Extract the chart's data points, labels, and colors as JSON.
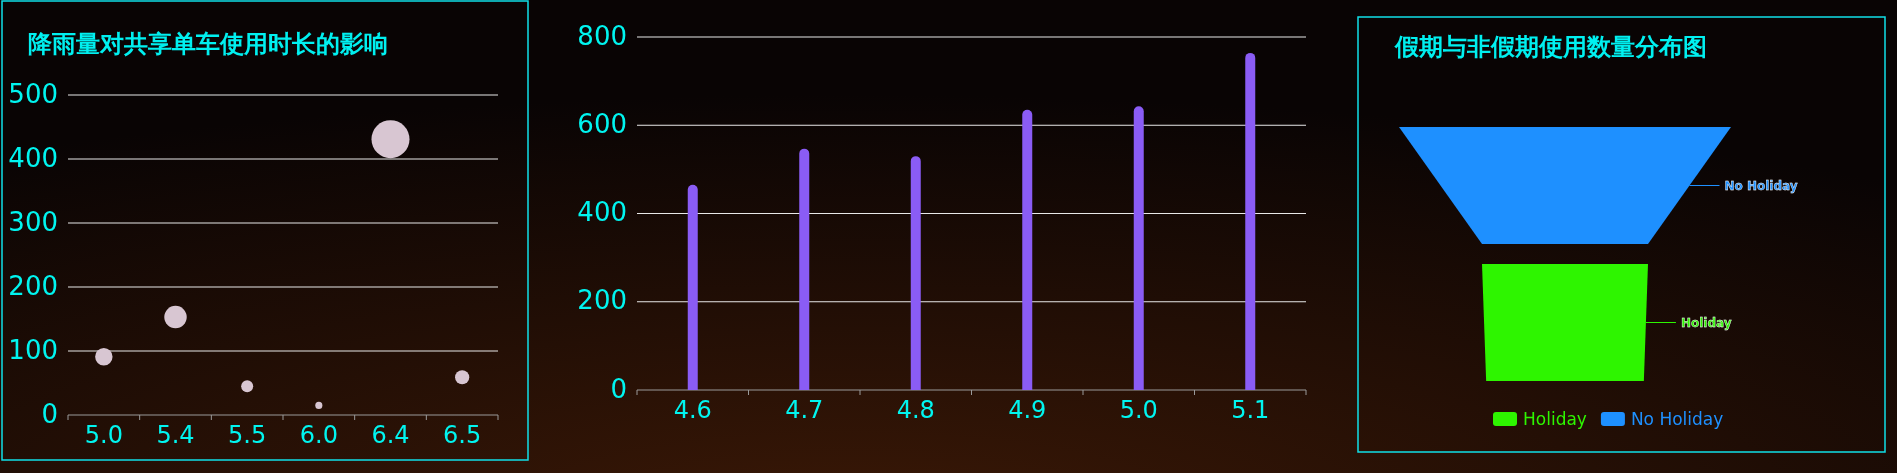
{
  "chart_data": [
    {
      "type": "bubble",
      "title": "降雨量对共享单车使用时长的影响",
      "categories": [
        "5.0",
        "5.4",
        "5.5",
        "6.0",
        "6.4",
        "6.5"
      ],
      "values": [
        91,
        153,
        45,
        15,
        431,
        59
      ],
      "sizes": [
        0.21,
        0.35,
        0.1,
        0.035,
        1,
        0.14
      ],
      "color": "#d8c6d2",
      "ylim": [
        0,
        500
      ],
      "yticks": [
        0,
        100,
        200,
        300,
        400,
        500
      ],
      "grid": "y"
    },
    {
      "type": "bar",
      "categories": [
        "4.6",
        "4.7",
        "4.8",
        "4.9",
        "5.0",
        "5.1"
      ],
      "values": [
        465,
        547,
        530,
        635,
        643,
        764
      ],
      "color": "#8a5cf5",
      "ylim": [
        0,
        800
      ],
      "yticks": [
        0,
        200,
        400,
        600,
        800
      ],
      "grid": "y"
    },
    {
      "type": "other",
      "title": "假期与非假期使用数量分布图",
      "legend": "bottom",
      "series": [
        {
          "name": "Holiday",
          "color": "#2ef500"
        },
        {
          "name": "No Holiday",
          "color": "#1e90ff"
        }
      ]
    }
  ]
}
